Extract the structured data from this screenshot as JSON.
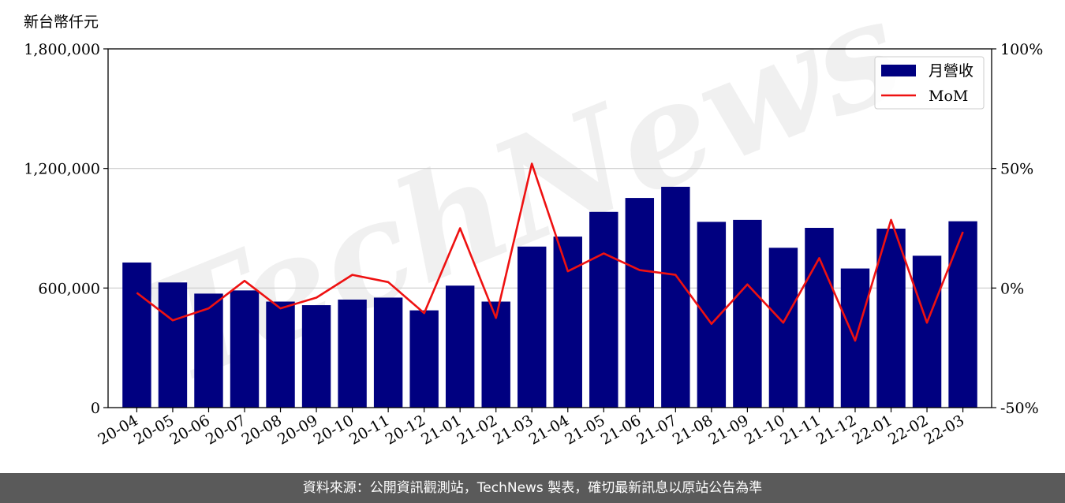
{
  "chart_data": {
    "type": "bar",
    "unit_label": "新台幣仟元",
    "categories": [
      "20-04",
      "20-05",
      "20-06",
      "20-07",
      "20-08",
      "20-09",
      "20-10",
      "20-11",
      "20-12",
      "21-01",
      "21-02",
      "21-03",
      "21-04",
      "21-05",
      "21-06",
      "21-07",
      "21-08",
      "21-09",
      "21-10",
      "21-11",
      "21-12",
      "22-01",
      "22-02",
      "22-03"
    ],
    "series": [
      {
        "name": "月營收",
        "kind": "bar",
        "axis": "left",
        "color": "#000080",
        "values": [
          728000,
          628000,
          572000,
          588000,
          532000,
          514000,
          542000,
          552000,
          488000,
          612000,
          532000,
          808000,
          858000,
          982000,
          1052000,
          1108000,
          932000,
          942000,
          802000,
          902000,
          698000,
          898000,
          762000,
          935000
        ]
      },
      {
        "name": "MoM",
        "kind": "line",
        "axis": "right",
        "color": "#ee1111",
        "values": [
          -2.0,
          -13.5,
          -8.5,
          3.0,
          -8.5,
          -4.0,
          5.5,
          2.5,
          -10.5,
          25.0,
          -12.5,
          52.0,
          7.0,
          14.5,
          7.5,
          5.5,
          -15.0,
          1.5,
          -14.5,
          12.5,
          -22.0,
          28.5,
          -14.5,
          23.5
        ]
      }
    ],
    "y_left": {
      "min": 0,
      "max": 1800000,
      "ticks": [
        0,
        600000,
        1200000,
        1800000
      ],
      "tick_labels": [
        "0",
        "600,000",
        "1,200,000",
        "1,800,000"
      ]
    },
    "y_right": {
      "min": -50,
      "max": 100,
      "ticks": [
        -50,
        0,
        50,
        100
      ],
      "tick_labels": [
        "-50%",
        "0%",
        "50%",
        "100%"
      ]
    },
    "grid": "horizontal",
    "legend_position": "top-right"
  },
  "watermark": "TechNews",
  "footer_text": "資料來源：公開資訊觀測站，TechNews 製表，確切最新訊息以原站公告為準"
}
